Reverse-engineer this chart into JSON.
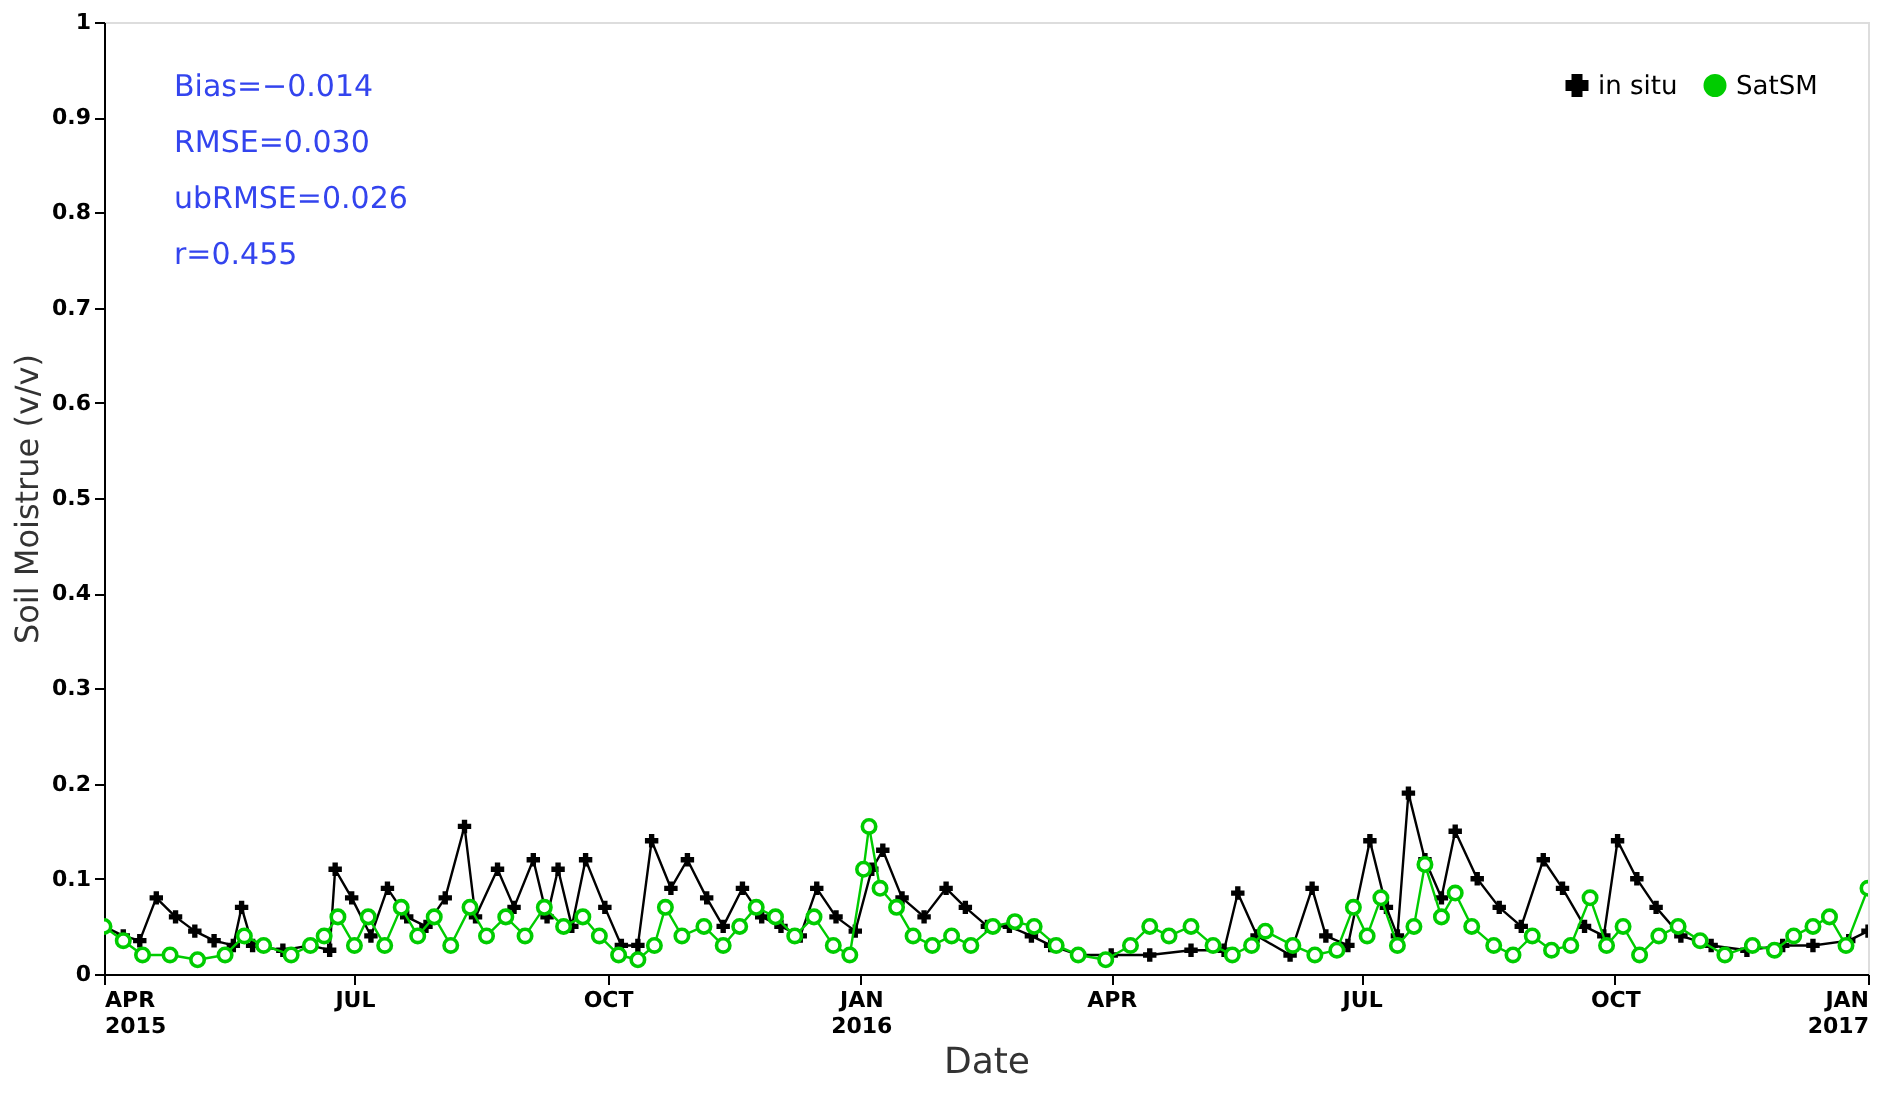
{
  "chart_data": {
    "type": "line",
    "xlabel": "Date",
    "ylabel": "Soil Moistrue (v/v)",
    "xlim": [
      "2015-04-01",
      "2017-01-01"
    ],
    "xticks": [
      {
        "value": "2015-04-01",
        "label": "APR\n2015"
      },
      {
        "value": "2015-07-01",
        "label": "JUL"
      },
      {
        "value": "2015-10-01",
        "label": "OCT"
      },
      {
        "value": "2016-01-01",
        "label": "JAN\n2016"
      },
      {
        "value": "2016-04-01",
        "label": "APR"
      },
      {
        "value": "2016-07-01",
        "label": "JUL"
      },
      {
        "value": "2016-10-01",
        "label": "OCT"
      },
      {
        "value": "2017-01-01",
        "label": "JAN\n2017"
      }
    ],
    "ylim": [
      0,
      1
    ],
    "yticks": [
      0,
      0.1,
      0.2,
      0.3,
      0.4,
      0.5,
      0.6,
      0.7,
      0.8,
      0.9,
      1
    ],
    "grid": false,
    "legend": "top right",
    "annotations": [
      "Bias=−0.014",
      "RMSE=0.030",
      "ubRMSE=0.026",
      "r=0.455"
    ],
    "series": [
      {
        "name": "in situ",
        "color": "#000000",
        "marker": "cross",
        "x": [
          "2015-04-01",
          "2015-04-08",
          "2015-04-14",
          "2015-04-20",
          "2015-04-27",
          "2015-05-04",
          "2015-05-11",
          "2015-05-18",
          "2015-05-21",
          "2015-05-25",
          "2015-06-05",
          "2015-06-15",
          "2015-06-22",
          "2015-06-24",
          "2015-06-30",
          "2015-07-07",
          "2015-07-13",
          "2015-07-20",
          "2015-07-27",
          "2015-08-03",
          "2015-08-10",
          "2015-08-14",
          "2015-08-22",
          "2015-08-28",
          "2015-09-04",
          "2015-09-09",
          "2015-09-13",
          "2015-09-18",
          "2015-09-23",
          "2015-09-30",
          "2015-10-06",
          "2015-10-12",
          "2015-10-17",
          "2015-10-24",
          "2015-10-30",
          "2015-11-06",
          "2015-11-12",
          "2015-11-19",
          "2015-11-26",
          "2015-12-03",
          "2015-12-10",
          "2015-12-16",
          "2015-12-23",
          "2015-12-30",
          "2016-01-05",
          "2016-01-09",
          "2016-01-16",
          "2016-01-24",
          "2016-02-01",
          "2016-02-08",
          "2016-02-16",
          "2016-02-24",
          "2016-03-03",
          "2016-03-10",
          "2016-03-20",
          "2016-04-01",
          "2016-04-15",
          "2016-04-30",
          "2016-05-12",
          "2016-05-17",
          "2016-05-24",
          "2016-06-05",
          "2016-06-13",
          "2016-06-18",
          "2016-06-26",
          "2016-07-04",
          "2016-07-10",
          "2016-07-14",
          "2016-07-18",
          "2016-07-24",
          "2016-07-30",
          "2016-08-04",
          "2016-08-12",
          "2016-08-20",
          "2016-08-28",
          "2016-09-05",
          "2016-09-12",
          "2016-09-20",
          "2016-09-27",
          "2016-10-02",
          "2016-10-09",
          "2016-10-16",
          "2016-10-25",
          "2016-11-05",
          "2016-11-18",
          "2016-12-01",
          "2016-12-12",
          "2016-12-25",
          "2017-01-01"
        ],
        "values": [
          0.05,
          0.04,
          0.035,
          0.08,
          0.06,
          0.045,
          0.035,
          0.03,
          0.07,
          0.03,
          0.025,
          0.03,
          0.025,
          0.11,
          0.08,
          0.04,
          0.09,
          0.06,
          0.05,
          0.08,
          0.155,
          0.06,
          0.11,
          0.07,
          0.12,
          0.06,
          0.11,
          0.05,
          0.12,
          0.07,
          0.03,
          0.03,
          0.14,
          0.09,
          0.12,
          0.08,
          0.05,
          0.09,
          0.06,
          0.05,
          0.04,
          0.09,
          0.06,
          0.045,
          0.11,
          0.13,
          0.08,
          0.06,
          0.09,
          0.07,
          0.05,
          0.05,
          0.04,
          0.03,
          0.02,
          0.02,
          0.02,
          0.025,
          0.025,
          0.085,
          0.04,
          0.02,
          0.09,
          0.04,
          0.03,
          0.14,
          0.07,
          0.04,
          0.19,
          0.12,
          0.08,
          0.15,
          0.1,
          0.07,
          0.05,
          0.12,
          0.09,
          0.05,
          0.04,
          0.14,
          0.1,
          0.07,
          0.04,
          0.03,
          0.025,
          0.03,
          0.03,
          0.035,
          0.045
        ]
      },
      {
        "name": "SatSM",
        "color": "#00cc00",
        "marker": "circle",
        "x": [
          "2015-04-01",
          "2015-04-08",
          "2015-04-15",
          "2015-04-25",
          "2015-05-05",
          "2015-05-15",
          "2015-05-22",
          "2015-05-29",
          "2015-06-08",
          "2015-06-15",
          "2015-06-20",
          "2015-06-25",
          "2015-07-01",
          "2015-07-06",
          "2015-07-12",
          "2015-07-18",
          "2015-07-24",
          "2015-07-30",
          "2015-08-05",
          "2015-08-12",
          "2015-08-18",
          "2015-08-25",
          "2015-09-01",
          "2015-09-08",
          "2015-09-15",
          "2015-09-22",
          "2015-09-28",
          "2015-10-05",
          "2015-10-12",
          "2015-10-18",
          "2015-10-22",
          "2015-10-28",
          "2015-11-05",
          "2015-11-12",
          "2015-11-18",
          "2015-11-24",
          "2015-12-01",
          "2015-12-08",
          "2015-12-15",
          "2015-12-22",
          "2015-12-28",
          "2016-01-02",
          "2016-01-04",
          "2016-01-08",
          "2016-01-14",
          "2016-01-20",
          "2016-01-27",
          "2016-02-03",
          "2016-02-10",
          "2016-02-18",
          "2016-02-26",
          "2016-03-04",
          "2016-03-12",
          "2016-03-20",
          "2016-03-30",
          "2016-04-08",
          "2016-04-15",
          "2016-04-22",
          "2016-04-30",
          "2016-05-08",
          "2016-05-15",
          "2016-05-22",
          "2016-05-27",
          "2016-06-06",
          "2016-06-14",
          "2016-06-22",
          "2016-06-28",
          "2016-07-03",
          "2016-07-08",
          "2016-07-14",
          "2016-07-20",
          "2016-07-24",
          "2016-07-30",
          "2016-08-04",
          "2016-08-10",
          "2016-08-18",
          "2016-08-25",
          "2016-09-01",
          "2016-09-08",
          "2016-09-15",
          "2016-09-22",
          "2016-09-28",
          "2016-10-04",
          "2016-10-10",
          "2016-10-17",
          "2016-10-24",
          "2016-11-01",
          "2016-11-10",
          "2016-11-20",
          "2016-11-28",
          "2016-12-05",
          "2016-12-12",
          "2016-12-18",
          "2016-12-24",
          "2017-01-01"
        ],
        "values": [
          0.05,
          0.035,
          0.02,
          0.02,
          0.015,
          0.02,
          0.04,
          0.03,
          0.02,
          0.03,
          0.04,
          0.06,
          0.03,
          0.06,
          0.03,
          0.07,
          0.04,
          0.06,
          0.03,
          0.07,
          0.04,
          0.06,
          0.04,
          0.07,
          0.05,
          0.06,
          0.04,
          0.02,
          0.015,
          0.03,
          0.07,
          0.04,
          0.05,
          0.03,
          0.05,
          0.07,
          0.06,
          0.04,
          0.06,
          0.03,
          0.02,
          0.11,
          0.155,
          0.09,
          0.07,
          0.04,
          0.03,
          0.04,
          0.03,
          0.05,
          0.055,
          0.05,
          0.03,
          0.02,
          0.015,
          0.03,
          0.05,
          0.04,
          0.05,
          0.03,
          0.02,
          0.03,
          0.045,
          0.03,
          0.02,
          0.025,
          0.07,
          0.04,
          0.08,
          0.03,
          0.05,
          0.115,
          0.06,
          0.085,
          0.05,
          0.03,
          0.02,
          0.04,
          0.025,
          0.03,
          0.08,
          0.03,
          0.05,
          0.02,
          0.04,
          0.05,
          0.035,
          0.02,
          0.03,
          0.025,
          0.04,
          0.05,
          0.06,
          0.03,
          0.09
        ]
      }
    ]
  }
}
